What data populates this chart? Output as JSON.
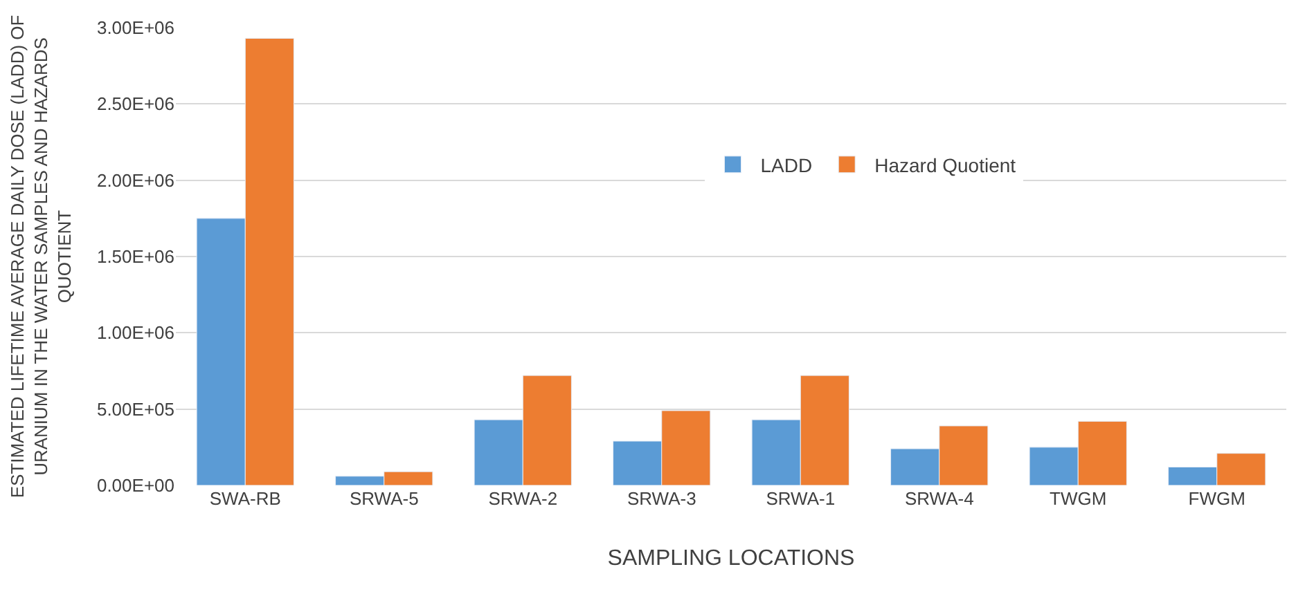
{
  "chart_data": {
    "type": "bar",
    "xlabel": "SAMPLING LOCATIONS",
    "ylabel": "ESTIMATED LIFETIME AVERAGE DAILY DOSE (LADD) OF URANIUM IN THE WATER SAMPLES AND HAZARDS QUOTIENT",
    "categories": [
      "SWA-RB",
      "SRWA-5",
      "SRWA-2",
      "SRWA-3",
      "SRWA-1",
      "SRWA-4",
      "TWGM",
      "FWGM"
    ],
    "series": [
      {
        "name": "LADD",
        "color": "#5b9bd5",
        "values": [
          1750000,
          60000,
          430000,
          290000,
          430000,
          240000,
          250000,
          120000
        ]
      },
      {
        "name": "Hazard Quotient",
        "color": "#ed7d31",
        "values": [
          2930000,
          90000,
          720000,
          490000,
          720000,
          390000,
          420000,
          210000
        ]
      }
    ],
    "ylim": [
      0,
      3000000
    ],
    "yticks": [
      {
        "value": 0,
        "label": "0.00E+00"
      },
      {
        "value": 500000,
        "label": "5.00E+05"
      },
      {
        "value": 1000000,
        "label": "1.00E+06"
      },
      {
        "value": 1500000,
        "label": "1.50E+06"
      },
      {
        "value": 2000000,
        "label": "2.00E+06"
      },
      {
        "value": 2500000,
        "label": "2.50E+06"
      },
      {
        "value": 3000000,
        "label": "3.00E+06"
      }
    ],
    "grid": "y",
    "legend": "top right"
  }
}
